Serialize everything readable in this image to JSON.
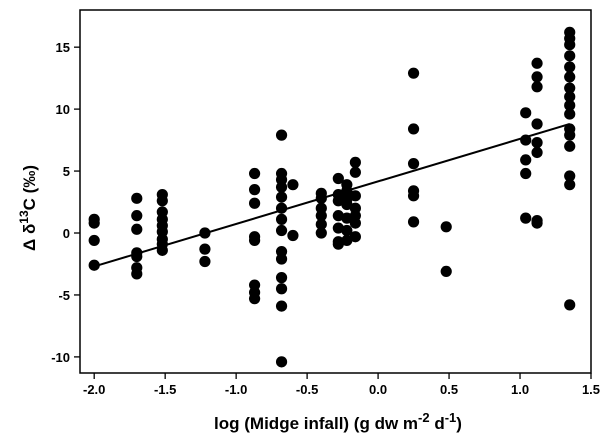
{
  "chart_data": {
    "type": "scatter",
    "title": "",
    "xlabel": {
      "prefix": "log (Midge infall) (g dw m",
      "exp1": "-2",
      "mid": " d",
      "exp2": "-1",
      "suffix": ")"
    },
    "ylabel": {
      "prefix": "Δ δ",
      "sup": "13",
      "suffix": "C (‰)"
    },
    "xlim": [
      -2.1,
      1.5
    ],
    "ylim": [
      -11.3,
      18
    ],
    "xticks": [
      -2.0,
      -1.5,
      -1.0,
      -0.5,
      0.0,
      0.5,
      1.0,
      1.5
    ],
    "xtick_labels": [
      "-2.0",
      "-1.5",
      "-1.0",
      "-0.5",
      "0.0",
      "0.5",
      "1.0",
      "1.5"
    ],
    "yticks": [
      -10,
      -5,
      0,
      5,
      10,
      15
    ],
    "ytick_labels": [
      "-10",
      "-5",
      "0",
      "5",
      "10",
      "15"
    ],
    "grid": false,
    "series": [
      {
        "marker": "filled-circle",
        "color": "#000000",
        "points": [
          [
            -2.0,
            1.1
          ],
          [
            -2.0,
            0.8
          ],
          [
            -2.0,
            -0.6
          ],
          [
            -2.0,
            -2.6
          ],
          [
            -1.7,
            2.8
          ],
          [
            -1.7,
            1.4
          ],
          [
            -1.7,
            0.3
          ],
          [
            -1.7,
            -1.6
          ],
          [
            -1.7,
            -1.9
          ],
          [
            -1.7,
            -2.8
          ],
          [
            -1.7,
            -3.3
          ],
          [
            -1.52,
            3.1
          ],
          [
            -1.52,
            2.6
          ],
          [
            -1.52,
            1.7
          ],
          [
            -1.52,
            1.1
          ],
          [
            -1.52,
            0.6
          ],
          [
            -1.52,
            0.1
          ],
          [
            -1.52,
            -0.5
          ],
          [
            -1.52,
            -0.9
          ],
          [
            -1.52,
            -1.4
          ],
          [
            -1.22,
            0.0
          ],
          [
            -1.22,
            -1.3
          ],
          [
            -1.22,
            -2.3
          ],
          [
            -0.87,
            4.8
          ],
          [
            -0.87,
            3.5
          ],
          [
            -0.87,
            2.4
          ],
          [
            -0.87,
            -0.3
          ],
          [
            -0.87,
            -0.6
          ],
          [
            -0.87,
            -4.2
          ],
          [
            -0.87,
            -4.8
          ],
          [
            -0.87,
            -5.3
          ],
          [
            -0.68,
            7.9
          ],
          [
            -0.68,
            4.8
          ],
          [
            -0.68,
            4.3
          ],
          [
            -0.68,
            3.7
          ],
          [
            -0.68,
            2.9
          ],
          [
            -0.68,
            2.0
          ],
          [
            -0.68,
            1.1
          ],
          [
            -0.68,
            0.2
          ],
          [
            -0.68,
            -1.5
          ],
          [
            -0.68,
            -2.1
          ],
          [
            -0.68,
            -3.6
          ],
          [
            -0.68,
            -4.5
          ],
          [
            -0.68,
            -5.9
          ],
          [
            -0.68,
            -10.4
          ],
          [
            -0.6,
            3.9
          ],
          [
            -0.6,
            -0.2
          ],
          [
            -0.4,
            3.2
          ],
          [
            -0.4,
            2.8
          ],
          [
            -0.4,
            2.0
          ],
          [
            -0.4,
            1.4
          ],
          [
            -0.4,
            0.7
          ],
          [
            -0.4,
            0.0
          ],
          [
            -0.28,
            4.4
          ],
          [
            -0.28,
            3.1
          ],
          [
            -0.28,
            2.6
          ],
          [
            -0.28,
            1.4
          ],
          [
            -0.28,
            0.4
          ],
          [
            -0.28,
            -0.7
          ],
          [
            -0.28,
            -0.9
          ],
          [
            -0.22,
            3.9
          ],
          [
            -0.22,
            3.4
          ],
          [
            -0.22,
            2.7
          ],
          [
            -0.22,
            2.3
          ],
          [
            -0.22,
            1.2
          ],
          [
            -0.22,
            0.2
          ],
          [
            -0.22,
            -0.6
          ],
          [
            -0.16,
            5.7
          ],
          [
            -0.16,
            4.9
          ],
          [
            -0.16,
            3.0
          ],
          [
            -0.16,
            2.0
          ],
          [
            -0.16,
            1.4
          ],
          [
            -0.16,
            0.8
          ],
          [
            -0.16,
            -0.3
          ],
          [
            0.25,
            12.9
          ],
          [
            0.25,
            8.4
          ],
          [
            0.25,
            5.6
          ],
          [
            0.25,
            3.4
          ],
          [
            0.25,
            3.0
          ],
          [
            0.25,
            0.9
          ],
          [
            0.48,
            0.5
          ],
          [
            0.48,
            -3.1
          ],
          [
            1.04,
            9.7
          ],
          [
            1.04,
            7.5
          ],
          [
            1.04,
            5.9
          ],
          [
            1.04,
            4.8
          ],
          [
            1.04,
            1.2
          ],
          [
            1.12,
            13.7
          ],
          [
            1.12,
            12.6
          ],
          [
            1.12,
            11.8
          ],
          [
            1.12,
            8.8
          ],
          [
            1.12,
            7.3
          ],
          [
            1.12,
            6.5
          ],
          [
            1.12,
            1.0
          ],
          [
            1.12,
            0.8
          ],
          [
            1.35,
            16.2
          ],
          [
            1.35,
            15.7
          ],
          [
            1.35,
            15.2
          ],
          [
            1.35,
            14.3
          ],
          [
            1.35,
            13.4
          ],
          [
            1.35,
            12.6
          ],
          [
            1.35,
            11.7
          ],
          [
            1.35,
            11.0
          ],
          [
            1.35,
            10.3
          ],
          [
            1.35,
            9.6
          ],
          [
            1.35,
            8.4
          ],
          [
            1.35,
            7.9
          ],
          [
            1.35,
            7.0
          ],
          [
            1.35,
            4.6
          ],
          [
            1.35,
            3.9
          ],
          [
            1.35,
            -5.8
          ]
        ]
      }
    ],
    "regression_line": {
      "x": [
        -2.0,
        1.35
      ],
      "y": [
        -2.7,
        8.8
      ]
    }
  }
}
